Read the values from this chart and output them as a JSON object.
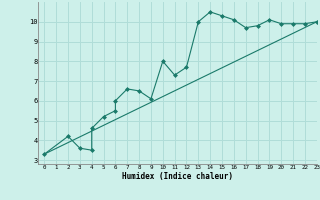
{
  "xlabel": "Humidex (Indice chaleur)",
  "ylabel": "",
  "background_color": "#cdf0ea",
  "grid_color": "#b0ddd8",
  "line_color": "#1a7a6a",
  "marker_color": "#1a7a6a",
  "xlim": [
    -0.5,
    23
  ],
  "ylim": [
    2.8,
    11.0
  ],
  "xticks": [
    0,
    1,
    2,
    3,
    4,
    5,
    6,
    7,
    8,
    9,
    10,
    11,
    12,
    13,
    14,
    15,
    16,
    17,
    18,
    19,
    20,
    21,
    22,
    23
  ],
  "yticks": [
    3,
    4,
    5,
    6,
    7,
    8,
    9,
    10
  ],
  "line1_x": [
    0,
    2,
    3,
    4,
    4,
    5,
    6,
    6,
    7,
    8,
    9,
    10,
    11,
    12,
    13,
    14,
    15,
    16,
    17,
    18,
    19,
    20,
    21,
    22,
    23
  ],
  "line1_y": [
    3.3,
    4.2,
    3.6,
    3.5,
    4.6,
    5.2,
    5.5,
    6.0,
    6.6,
    6.5,
    6.1,
    8.0,
    7.3,
    7.7,
    10.0,
    10.5,
    10.3,
    10.1,
    9.7,
    9.8,
    10.1,
    9.9,
    9.9,
    9.9,
    10.0
  ],
  "line2_x": [
    0,
    23
  ],
  "line2_y": [
    3.3,
    10.0
  ]
}
